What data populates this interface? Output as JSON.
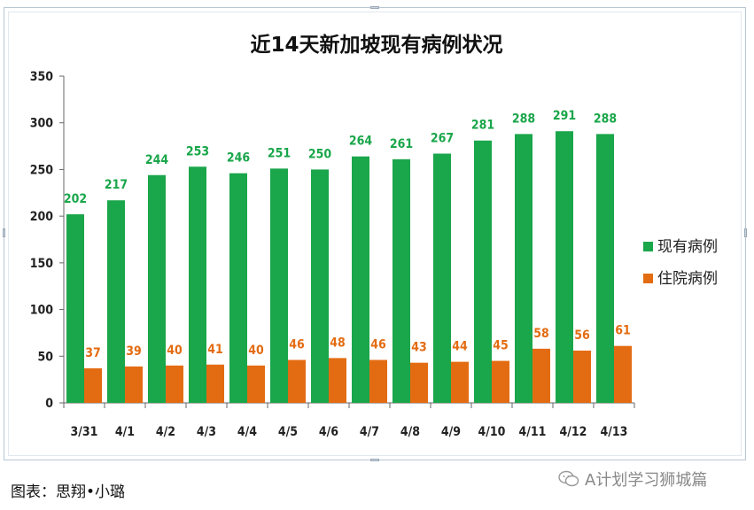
{
  "caption": "图表：思翔•小璐",
  "watermark": "A计划学习狮城篇",
  "watermark_icon": "wechat-icon",
  "colors": {
    "current_cases": "#1aa64a",
    "hospitalized": "#e36c12",
    "axis": "#666666"
  },
  "chart_data": {
    "type": "bar",
    "title": "近14天新加坡现有病例状况",
    "categories": [
      "3/31",
      "4/1",
      "4/2",
      "4/3",
      "4/4",
      "4/5",
      "4/6",
      "4/7",
      "4/8",
      "4/9",
      "4/10",
      "4/11",
      "4/12",
      "4/13"
    ],
    "series": [
      {
        "name": "现有病例",
        "values": [
          202,
          217,
          244,
          253,
          246,
          251,
          250,
          264,
          261,
          267,
          281,
          288,
          291,
          288
        ]
      },
      {
        "name": "住院病例",
        "values": [
          37,
          39,
          40,
          41,
          40,
          46,
          48,
          46,
          43,
          44,
          45,
          58,
          56,
          61
        ]
      }
    ],
    "xlabel": "",
    "ylabel": "",
    "ylim": [
      0,
      350
    ],
    "yticks": [
      0,
      50,
      100,
      150,
      200,
      250,
      300,
      350
    ],
    "grid": false,
    "legend_position": "right"
  }
}
